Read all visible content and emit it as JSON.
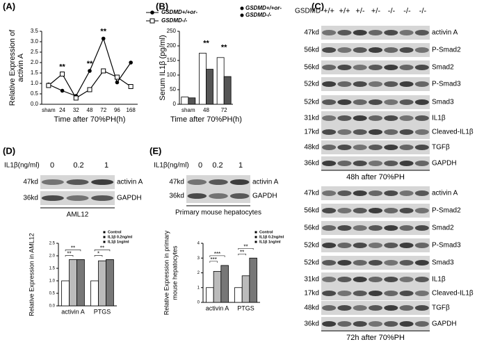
{
  "panel_labels": [
    "(A)",
    "(B)",
    "(C)",
    "(D)",
    "(E)"
  ],
  "chart_data": [
    {
      "type": "line",
      "x_label": "Time after 70%PH(h)",
      "y_label": [
        "Relative Expression of",
        "activin A"
      ],
      "categories": [
        "sham",
        "24",
        "32",
        "48",
        "72",
        "96",
        "168"
      ],
      "series": [
        {
          "name": "GSDMD+/+or-",
          "color": "#000000",
          "marker": "circle",
          "values": [
            0.95,
            0.65,
            0.4,
            1.6,
            3.15,
            1.05,
            2.0
          ]
        },
        {
          "name": "GSDMD-/-",
          "color": "#000000",
          "marker": "square",
          "values": [
            0.9,
            1.45,
            0.3,
            0.7,
            1.6,
            1.3,
            0.85
          ]
        }
      ],
      "ylim": [
        0,
        3.5
      ],
      "yticks": [
        {
          "value": 0,
          "label": "0.0"
        },
        0.5,
        {
          "value": 1,
          "label": "1.0"
        },
        1.5,
        {
          "value": 2,
          "label": "2.0"
        },
        2.5,
        {
          "value": 3,
          "label": "3.0"
        },
        3.5
      ],
      "annotations": [
        "**",
        "**",
        "**"
      ]
    },
    {
      "type": "bar",
      "x_label": "Time after 70%PH(h)",
      "y_label": "Serum IL1β (pg/ml)",
      "categories": [
        "sham",
        "48",
        "72"
      ],
      "series": [
        {
          "name": "GSDMD+/+or-",
          "color": "#ffffff",
          "values": [
            25,
            175,
            160
          ]
        },
        {
          "name": "GSDMD-/-",
          "color": "#555555",
          "values": [
            22,
            120,
            95
          ]
        }
      ],
      "ylim": [
        0,
        250
      ],
      "yticks": [
        0,
        50,
        100,
        150,
        200,
        250
      ],
      "annotations": [
        "**",
        "**"
      ]
    },
    {
      "type": "bar",
      "y_label": "Relative Expression in AML12",
      "categories": [
        "activin A",
        "PTGS"
      ],
      "series": [
        {
          "name": "Control",
          "color": "#ffffff",
          "values": [
            1.0,
            1.0
          ]
        },
        {
          "name": "IL1β 0.2ng/ml",
          "color": "#bbbbbb",
          "values": [
            1.85,
            1.8
          ]
        },
        {
          "name": "IL1β 1ng/ml",
          "color": "#777777",
          "values": [
            1.85,
            1.85
          ]
        }
      ],
      "ylim": [
        0,
        2.5
      ],
      "yticks": [
        {
          "value": 0,
          "label": "0.0"
        },
        0.5,
        {
          "value": 1,
          "label": "1.0"
        },
        1.5,
        {
          "value": 2,
          "label": "2.0"
        },
        2.5
      ],
      "annotations": [
        "**",
        "**",
        "*",
        "**"
      ]
    },
    {
      "type": "bar",
      "y_label": [
        "Relative Expression in primary",
        "mouse hepatocytes"
      ],
      "categories": [
        "activin A",
        "PTGS"
      ],
      "series": [
        {
          "name": "Control",
          "color": "#ffffff",
          "values": [
            1.0,
            1.0
          ]
        },
        {
          "name": "IL1β 0.2ng/ml",
          "color": "#bbbbbb",
          "values": [
            2.1,
            1.8
          ]
        },
        {
          "name": "IL1β 1ng/ml",
          "color": "#777777",
          "values": [
            2.5,
            3.0
          ]
        }
      ],
      "ylim": [
        0,
        4
      ],
      "yticks": [
        0,
        1,
        2,
        3,
        4
      ],
      "annotations": [
        "***",
        "***",
        "**",
        "**"
      ]
    }
  ],
  "blot_c": {
    "header": "GSDMD",
    "lanes": [
      "+/+",
      "+/+",
      "+/-",
      "+/-",
      "-/-",
      "-/-",
      "-/-"
    ],
    "sections": [
      {
        "caption": "48h after 70%PH",
        "rows": [
          {
            "kd": "47kd",
            "name": "activin A"
          },
          {
            "kd": "56kd",
            "name": "P-Smad2"
          },
          {
            "kd": "56kd",
            "name": "Smad2"
          },
          {
            "kd": "52kd",
            "name": "P-Smad3"
          },
          {
            "kd": "52kd",
            "name": "Smad3"
          },
          {
            "kd": "31kd",
            "name": "IL1β"
          },
          {
            "kd": "17kd",
            "name": "Cleaved-IL1β"
          },
          {
            "kd": "48kd",
            "name": "TGFβ"
          },
          {
            "kd": "36kd",
            "name": "GAPDH"
          }
        ]
      },
      {
        "caption": "72h after 70%PH",
        "rows": [
          {
            "kd": "47kd",
            "name": "activin A"
          },
          {
            "kd": "56kd",
            "name": "P-Smad2"
          },
          {
            "kd": "56kd",
            "name": "Smad2"
          },
          {
            "kd": "52kd",
            "name": "P-Smad3"
          },
          {
            "kd": "52kd",
            "name": "Smad3"
          },
          {
            "kd": "31kd",
            "name": "IL1β"
          },
          {
            "kd": "17kd",
            "name": "Cleaved-IL1β"
          },
          {
            "kd": "48kd",
            "name": "TGFβ"
          },
          {
            "kd": "36kd",
            "name": "GAPDH"
          }
        ]
      }
    ]
  },
  "blot_d": {
    "header": "IL1β(ng/ml)",
    "lanes": [
      "0",
      "0.2",
      "1"
    ],
    "rows": [
      {
        "kd": "47kd",
        "name": "activin A"
      },
      {
        "kd": "36kd",
        "name": "GAPDH"
      }
    ],
    "caption": "AML12"
  },
  "blot_e": {
    "header": "IL1β(ng/ml)",
    "lanes": [
      "0",
      "0.2",
      "1"
    ],
    "rows": [
      {
        "kd": "47kd",
        "name": "activin A"
      },
      {
        "kd": "36kd",
        "name": "GAPDH"
      }
    ],
    "caption": "Primary mouse hepatocytes"
  }
}
